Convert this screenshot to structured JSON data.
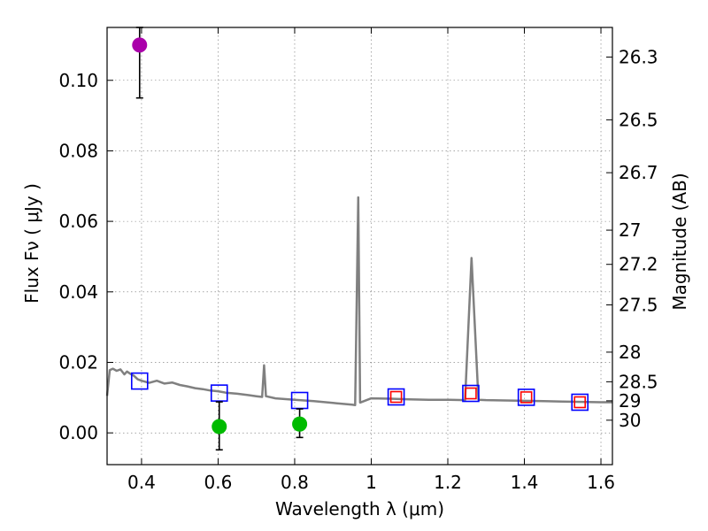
{
  "chart_data": {
    "type": "scatter",
    "xlabel": "Wavelength  λ (μm)",
    "ylabel": "Flux  Fν  ( μJy )",
    "ylabel_right": "Magnitude (AB)",
    "xlim": [
      0.31,
      1.63
    ],
    "ylim": [
      -0.009,
      0.115
    ],
    "grid": true,
    "x_ticks": [
      0.4,
      0.6,
      0.8,
      1.0,
      1.2,
      1.4,
      1.6
    ],
    "x_tick_labels": [
      "0.4",
      "0.6",
      "0.8",
      "1",
      "1.2",
      "1.4",
      "1.6"
    ],
    "y_ticks": [
      0.0,
      0.02,
      0.04,
      0.06,
      0.08,
      0.1
    ],
    "y_tick_labels": [
      "0.00",
      "0.02",
      "0.04",
      "0.06",
      "0.08",
      "0.10"
    ],
    "right_ticks": [
      {
        "label": "26.3",
        "flux": 0.1066
      },
      {
        "label": "26.5",
        "flux": 0.0888
      },
      {
        "label": "26.7",
        "flux": 0.0738
      },
      {
        "label": "27",
        "flux": 0.0575
      },
      {
        "label": "27.2",
        "flux": 0.0478
      },
      {
        "label": "27.5",
        "flux": 0.0363
      },
      {
        "label": "28",
        "flux": 0.0229
      },
      {
        "label": "28.5",
        "flux": 0.0145
      },
      {
        "label": "29",
        "flux": 0.0091
      },
      {
        "label": "30",
        "flux": 0.0036
      }
    ],
    "series": [
      {
        "name": "Model spectrum",
        "kind": "line",
        "color": "#808080",
        "points": [
          [
            0.31,
            0.0105
          ],
          [
            0.317,
            0.0178
          ],
          [
            0.325,
            0.0182
          ],
          [
            0.335,
            0.0176
          ],
          [
            0.345,
            0.018
          ],
          [
            0.355,
            0.0166
          ],
          [
            0.362,
            0.0174
          ],
          [
            0.37,
            0.0168
          ],
          [
            0.38,
            0.0162
          ],
          [
            0.39,
            0.0152
          ],
          [
            0.4,
            0.0148
          ],
          [
            0.42,
            0.0142
          ],
          [
            0.44,
            0.0148
          ],
          [
            0.46,
            0.014
          ],
          [
            0.48,
            0.0143
          ],
          [
            0.5,
            0.0136
          ],
          [
            0.52,
            0.0132
          ],
          [
            0.54,
            0.0127
          ],
          [
            0.56,
            0.0124
          ],
          [
            0.58,
            0.012
          ],
          [
            0.6,
            0.0118
          ],
          [
            0.62,
            0.0114
          ],
          [
            0.65,
            0.0111
          ],
          [
            0.68,
            0.0107
          ],
          [
            0.7,
            0.0104
          ],
          [
            0.715,
            0.0102
          ],
          [
            0.72,
            0.0192
          ],
          [
            0.725,
            0.0104
          ],
          [
            0.75,
            0.0098
          ],
          [
            0.8,
            0.0094
          ],
          [
            0.85,
            0.009
          ],
          [
            0.9,
            0.0085
          ],
          [
            0.95,
            0.008
          ],
          [
            0.958,
            0.0079
          ],
          [
            0.966,
            0.0668
          ],
          [
            0.971,
            0.0086
          ],
          [
            1.0,
            0.0098
          ],
          [
            1.05,
            0.0097
          ],
          [
            1.1,
            0.0095
          ],
          [
            1.15,
            0.0094
          ],
          [
            1.2,
            0.0094
          ],
          [
            1.245,
            0.0093
          ],
          [
            1.262,
            0.0496
          ],
          [
            1.28,
            0.0094
          ],
          [
            1.3,
            0.0093
          ],
          [
            1.35,
            0.0092
          ],
          [
            1.4,
            0.0091
          ],
          [
            1.45,
            0.009
          ],
          [
            1.5,
            0.0089
          ],
          [
            1.55,
            0.0088
          ],
          [
            1.6,
            0.0087
          ],
          [
            1.63,
            0.0087
          ]
        ]
      },
      {
        "name": "Model photometry (blue squares)",
        "kind": "marker",
        "marker": "square",
        "color": "#0000ff",
        "points": [
          [
            0.395,
            0.0147
          ],
          [
            0.603,
            0.0113
          ],
          [
            0.813,
            0.0092
          ],
          [
            1.065,
            0.0102
          ],
          [
            1.26,
            0.0112
          ],
          [
            1.405,
            0.0101
          ],
          [
            1.545,
            0.0087
          ]
        ]
      },
      {
        "name": "Model photometry (red squares)",
        "kind": "marker",
        "marker": "square",
        "color": "#ff0000",
        "points": [
          [
            1.065,
            0.0102
          ],
          [
            1.26,
            0.0112
          ],
          [
            1.405,
            0.0101
          ],
          [
            1.545,
            0.0087
          ]
        ]
      },
      {
        "name": "Detections (green)",
        "kind": "marker",
        "marker": "circle",
        "color": "#00bb00",
        "points": [
          [
            0.603,
            0.0018
          ],
          [
            0.813,
            0.0025
          ]
        ],
        "errors": [
          [
            -0.0048,
            0.0088
          ],
          [
            -0.0013,
            0.0068
          ]
        ]
      },
      {
        "name": "Detection (magenta)",
        "kind": "marker",
        "marker": "circle",
        "color": "#aa00aa",
        "points": [
          [
            0.395,
            0.11
          ]
        ],
        "errors": [
          [
            0.095,
            0.115
          ]
        ]
      }
    ]
  }
}
